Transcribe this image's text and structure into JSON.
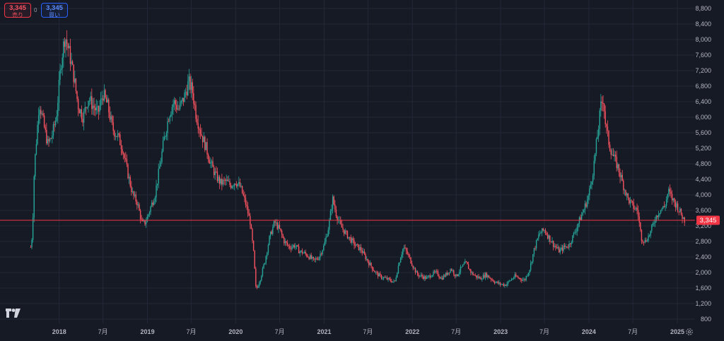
{
  "header": {
    "sell_price": "3,345",
    "sell_label": "売り",
    "spread": "0",
    "buy_price": "3,345",
    "buy_label": "買い"
  },
  "icons": {
    "logo": "tradingview-logo-icon",
    "settings": "gear-icon"
  },
  "colors": {
    "background": "#161a25",
    "up": "#26a69a",
    "down": "#f7525f",
    "grid": "#232837",
    "price_line": "#f23645"
  },
  "chart_data": {
    "type": "candlestick",
    "title": "",
    "xlabel": "",
    "ylabel": "",
    "ylim": [
      800,
      8800
    ],
    "xlim": [
      "2017-05-01",
      "2025-03-15"
    ],
    "y_ticks": [
      "800",
      "1,200",
      "1,600",
      "2,000",
      "2,400",
      "2,800",
      "3,200",
      "3,600",
      "4,000",
      "4,400",
      "4,800",
      "5,200",
      "5,600",
      "6,000",
      "6,400",
      "6,800",
      "7,200",
      "7,600",
      "8,000",
      "8,400",
      "8,800"
    ],
    "x_ticks": [
      {
        "date": "2018-01-01",
        "label": "2018",
        "major": true
      },
      {
        "date": "2018-07-01",
        "label": "7月",
        "major": false
      },
      {
        "date": "2019-01-01",
        "label": "2019",
        "major": true
      },
      {
        "date": "2019-07-01",
        "label": "7月",
        "major": false
      },
      {
        "date": "2020-01-01",
        "label": "2020",
        "major": true
      },
      {
        "date": "2020-07-01",
        "label": "7月",
        "major": false
      },
      {
        "date": "2021-01-01",
        "label": "2021",
        "major": true
      },
      {
        "date": "2021-07-01",
        "label": "7月",
        "major": false
      },
      {
        "date": "2022-01-01",
        "label": "2022",
        "major": true
      },
      {
        "date": "2022-07-01",
        "label": "7月",
        "major": false
      },
      {
        "date": "2023-01-01",
        "label": "2023",
        "major": true
      },
      {
        "date": "2023-07-01",
        "label": "7月",
        "major": false
      },
      {
        "date": "2024-01-01",
        "label": "2024",
        "major": true
      },
      {
        "date": "2024-07-01",
        "label": "7月",
        "major": false
      },
      {
        "date": "2025-01-01",
        "label": "2025",
        "major": true
      }
    ],
    "last_price": 3345,
    "last_price_label": "3,345",
    "price_path": [
      [
        "2017-09-05",
        2650
      ],
      [
        "2017-09-12",
        3000
      ],
      [
        "2017-09-20",
        4700
      ],
      [
        "2017-10-01",
        5600
      ],
      [
        "2017-10-10",
        6400
      ],
      [
        "2017-10-20",
        6100
      ],
      [
        "2017-11-01",
        5700
      ],
      [
        "2017-11-15",
        5300
      ],
      [
        "2017-12-01",
        5500
      ],
      [
        "2017-12-20",
        6000
      ],
      [
        "2018-01-10",
        7500
      ],
      [
        "2018-01-25",
        8100
      ],
      [
        "2018-02-10",
        7700
      ],
      [
        "2018-03-01",
        7100
      ],
      [
        "2018-03-20",
        6300
      ],
      [
        "2018-04-10",
        6000
      ],
      [
        "2018-05-01",
        6500
      ],
      [
        "2018-05-20",
        6300
      ],
      [
        "2018-06-10",
        6100
      ],
      [
        "2018-07-01",
        6600
      ],
      [
        "2018-07-20",
        6300
      ],
      [
        "2018-08-10",
        5700
      ],
      [
        "2018-09-01",
        5500
      ],
      [
        "2018-09-20",
        5200
      ],
      [
        "2018-10-10",
        4600
      ],
      [
        "2018-11-01",
        4000
      ],
      [
        "2018-11-20",
        3800
      ],
      [
        "2018-12-10",
        3250
      ],
      [
        "2018-12-25",
        3300
      ],
      [
        "2019-01-15",
        3700
      ],
      [
        "2019-02-01",
        4000
      ],
      [
        "2019-02-20",
        4700
      ],
      [
        "2019-03-10",
        5400
      ],
      [
        "2019-04-01",
        6100
      ],
      [
        "2019-04-20",
        6400
      ],
      [
        "2019-05-10",
        6200
      ],
      [
        "2019-06-01",
        6500
      ],
      [
        "2019-06-20",
        6900
      ],
      [
        "2019-07-05",
        6700
      ],
      [
        "2019-07-20",
        6100
      ],
      [
        "2019-08-10",
        5600
      ],
      [
        "2019-09-01",
        5200
      ],
      [
        "2019-09-20",
        4800
      ],
      [
        "2019-10-10",
        4500
      ],
      [
        "2019-11-01",
        4300
      ],
      [
        "2019-11-20",
        4350
      ],
      [
        "2019-12-10",
        4250
      ],
      [
        "2020-01-01",
        4350
      ],
      [
        "2020-01-20",
        4200
      ],
      [
        "2020-02-10",
        3800
      ],
      [
        "2020-03-01",
        3300
      ],
      [
        "2020-03-15",
        2500
      ],
      [
        "2020-03-25",
        1550
      ],
      [
        "2020-04-10",
        1800
      ],
      [
        "2020-05-01",
        2300
      ],
      [
        "2020-05-20",
        2900
      ],
      [
        "2020-06-10",
        3300
      ],
      [
        "2020-07-01",
        3100
      ],
      [
        "2020-07-20",
        2800
      ],
      [
        "2020-08-10",
        2650
      ],
      [
        "2020-09-01",
        2700
      ],
      [
        "2020-09-20",
        2550
      ],
      [
        "2020-10-10",
        2500
      ],
      [
        "2020-11-01",
        2400
      ],
      [
        "2020-11-20",
        2300
      ],
      [
        "2020-12-10",
        2400
      ],
      [
        "2021-01-01",
        2700
      ],
      [
        "2021-01-20",
        3200
      ],
      [
        "2021-02-05",
        3900
      ],
      [
        "2021-02-20",
        3500
      ],
      [
        "2021-03-10",
        3200
      ],
      [
        "2021-04-01",
        3000
      ],
      [
        "2021-04-20",
        2850
      ],
      [
        "2021-05-10",
        2700
      ],
      [
        "2021-06-01",
        2600
      ],
      [
        "2021-06-20",
        2400
      ],
      [
        "2021-07-10",
        2200
      ],
      [
        "2021-08-01",
        2000
      ],
      [
        "2021-08-20",
        1900
      ],
      [
        "2021-09-10",
        1850
      ],
      [
        "2021-10-01",
        1800
      ],
      [
        "2021-10-20",
        1750
      ],
      [
        "2021-11-10",
        2350
      ],
      [
        "2021-11-25",
        2650
      ],
      [
        "2021-12-10",
        2500
      ],
      [
        "2022-01-01",
        2200
      ],
      [
        "2022-01-20",
        1950
      ],
      [
        "2022-02-10",
        1900
      ],
      [
        "2022-03-01",
        1850
      ],
      [
        "2022-03-20",
        1950
      ],
      [
        "2022-04-10",
        2000
      ],
      [
        "2022-05-01",
        1850
      ],
      [
        "2022-05-20",
        1950
      ],
      [
        "2022-06-10",
        2100
      ],
      [
        "2022-07-01",
        1900
      ],
      [
        "2022-07-20",
        2100
      ],
      [
        "2022-08-10",
        2250
      ],
      [
        "2022-09-01",
        2000
      ],
      [
        "2022-09-20",
        1900
      ],
      [
        "2022-10-10",
        1850
      ],
      [
        "2022-11-01",
        1950
      ],
      [
        "2022-11-20",
        1850
      ],
      [
        "2022-12-10",
        1750
      ],
      [
        "2023-01-01",
        1700
      ],
      [
        "2023-01-20",
        1680
      ],
      [
        "2023-02-10",
        1800
      ],
      [
        "2023-03-01",
        1900
      ],
      [
        "2023-03-20",
        1850
      ],
      [
        "2023-04-10",
        1800
      ],
      [
        "2023-05-01",
        2100
      ],
      [
        "2023-05-20",
        2600
      ],
      [
        "2023-06-10",
        3000
      ],
      [
        "2023-07-01",
        3100
      ],
      [
        "2023-07-20",
        2900
      ],
      [
        "2023-08-10",
        2700
      ],
      [
        "2023-09-01",
        2550
      ],
      [
        "2023-09-20",
        2650
      ],
      [
        "2023-10-10",
        2700
      ],
      [
        "2023-11-01",
        3000
      ],
      [
        "2023-11-20",
        3300
      ],
      [
        "2023-12-10",
        3600
      ],
      [
        "2024-01-01",
        4000
      ],
      [
        "2024-01-20",
        4700
      ],
      [
        "2024-02-05",
        5500
      ],
      [
        "2024-02-20",
        6300
      ],
      [
        "2024-03-01",
        6500
      ],
      [
        "2024-03-10",
        5800
      ],
      [
        "2024-03-25",
        5300
      ],
      [
        "2024-04-10",
        5000
      ],
      [
        "2024-05-01",
        4700
      ],
      [
        "2024-05-20",
        4300
      ],
      [
        "2024-06-10",
        3900
      ],
      [
        "2024-07-01",
        3700
      ],
      [
        "2024-07-20",
        3600
      ],
      [
        "2024-08-05",
        2900
      ],
      [
        "2024-08-20",
        2800
      ],
      [
        "2024-09-10",
        3000
      ],
      [
        "2024-10-01",
        3400
      ],
      [
        "2024-10-20",
        3600
      ],
      [
        "2024-11-10",
        3700
      ],
      [
        "2024-11-25",
        4100
      ],
      [
        "2024-12-10",
        3900
      ],
      [
        "2025-01-01",
        3700
      ],
      [
        "2025-01-20",
        3450
      ],
      [
        "2025-02-01",
        3345
      ]
    ]
  }
}
